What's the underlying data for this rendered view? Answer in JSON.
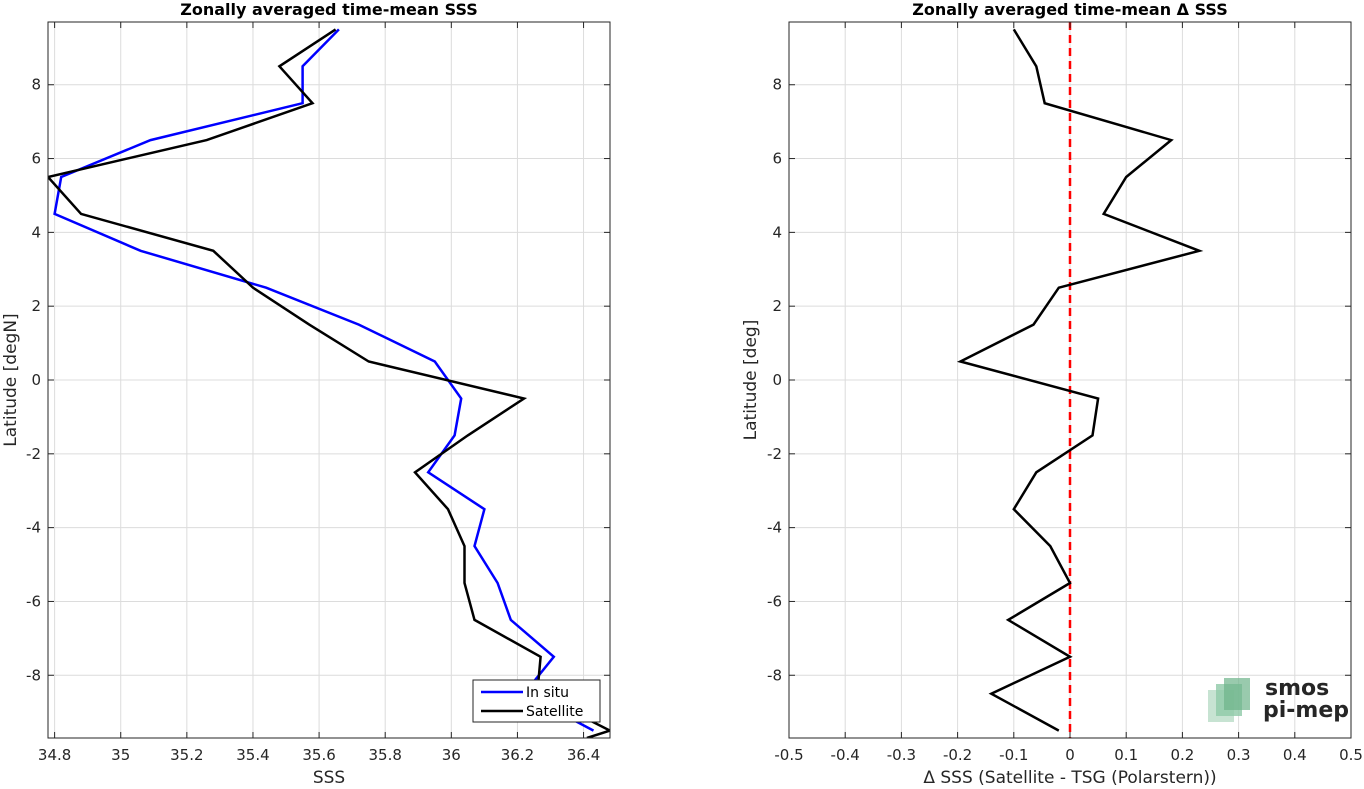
{
  "chart_data": [
    {
      "type": "line",
      "title": "Zonally averaged time-mean SSS",
      "xlabel": "SSS",
      "ylabel": "Latitude [degN]",
      "xlim": [
        34.78,
        36.48
      ],
      "ylim": [
        -9.7,
        9.7
      ],
      "xticks": [
        34.8,
        35,
        35.2,
        35.4,
        35.6,
        35.8,
        36,
        36.2,
        36.4
      ],
      "yticks": [
        -8,
        -6,
        -4,
        -2,
        0,
        2,
        4,
        6,
        8
      ],
      "grid": true,
      "legend_position": "bottom-right",
      "series": [
        {
          "name": "In situ",
          "color": "#0000ff",
          "points": [
            [
              35.66,
              9.5
            ],
            [
              35.55,
              8.5
            ],
            [
              35.55,
              7.5
            ],
            [
              35.09,
              6.5
            ],
            [
              34.82,
              5.5
            ],
            [
              34.8,
              4.5
            ],
            [
              35.06,
              3.5
            ],
            [
              35.44,
              2.5
            ],
            [
              35.72,
              1.5
            ],
            [
              35.95,
              0.5
            ],
            [
              36.03,
              -0.5
            ],
            [
              36.01,
              -1.5
            ],
            [
              35.93,
              -2.5
            ],
            [
              36.1,
              -3.5
            ],
            [
              36.07,
              -4.5
            ],
            [
              36.14,
              -5.5
            ],
            [
              36.18,
              -6.5
            ],
            [
              36.31,
              -7.5
            ],
            [
              36.22,
              -8.5
            ],
            [
              36.43,
              -9.5
            ]
          ]
        },
        {
          "name": "Satellite",
          "color": "#000000",
          "points": [
            [
              35.65,
              9.5
            ],
            [
              35.48,
              8.5
            ],
            [
              35.58,
              7.5
            ],
            [
              35.26,
              6.5
            ],
            [
              34.78,
              5.5
            ],
            [
              34.88,
              4.5
            ],
            [
              35.28,
              3.5
            ],
            [
              35.4,
              2.5
            ],
            [
              35.57,
              1.5
            ],
            [
              35.75,
              0.5
            ],
            [
              36.22,
              -0.5
            ],
            [
              36.05,
              -1.5
            ],
            [
              35.89,
              -2.5
            ],
            [
              35.99,
              -3.5
            ],
            [
              36.04,
              -4.5
            ],
            [
              36.04,
              -5.5
            ],
            [
              36.07,
              -6.5
            ],
            [
              36.27,
              -7.5
            ],
            [
              36.26,
              -8.5
            ],
            [
              36.48,
              -9.5
            ],
            [
              36.41,
              -9.7
            ]
          ]
        }
      ]
    },
    {
      "type": "line",
      "title": "Zonally averaged time-mean Δ SSS",
      "xlabel": "Δ SSS (Satellite - TSG (Polarstern))",
      "ylabel": "Latitude [deg]",
      "xlim": [
        -0.5,
        0.5
      ],
      "ylim": [
        -9.7,
        9.7
      ],
      "xticks": [
        -0.5,
        -0.4,
        -0.3,
        -0.2,
        -0.1,
        0,
        0.1,
        0.2,
        0.3,
        0.4,
        0.5
      ],
      "yticks": [
        -8,
        -6,
        -4,
        -2,
        0,
        2,
        4,
        6,
        8
      ],
      "grid": true,
      "reference_line": {
        "x": 0,
        "color": "#ff0000",
        "style": "dashed"
      },
      "series": [
        {
          "color": "#000000",
          "points": [
            [
              -0.1,
              9.5
            ],
            [
              -0.06,
              8.5
            ],
            [
              -0.045,
              7.5
            ],
            [
              0.18,
              6.5
            ],
            [
              0.1,
              5.5
            ],
            [
              0.06,
              4.5
            ],
            [
              0.23,
              3.5
            ],
            [
              -0.02,
              2.5
            ],
            [
              -0.065,
              1.5
            ],
            [
              -0.195,
              0.5
            ],
            [
              0.05,
              -0.5
            ],
            [
              0.04,
              -1.5
            ],
            [
              -0.06,
              -2.5
            ],
            [
              -0.1,
              -3.5
            ],
            [
              -0.035,
              -4.5
            ],
            [
              0.0,
              -5.5
            ],
            [
              -0.11,
              -6.5
            ],
            [
              0.0,
              -7.5
            ],
            [
              -0.14,
              -8.5
            ],
            [
              -0.02,
              -9.5
            ]
          ]
        }
      ]
    }
  ],
  "logo": {
    "line1": "smos",
    "line2": "pi-mep",
    "color1": "#6db38a",
    "color2": "#2e8b57"
  }
}
